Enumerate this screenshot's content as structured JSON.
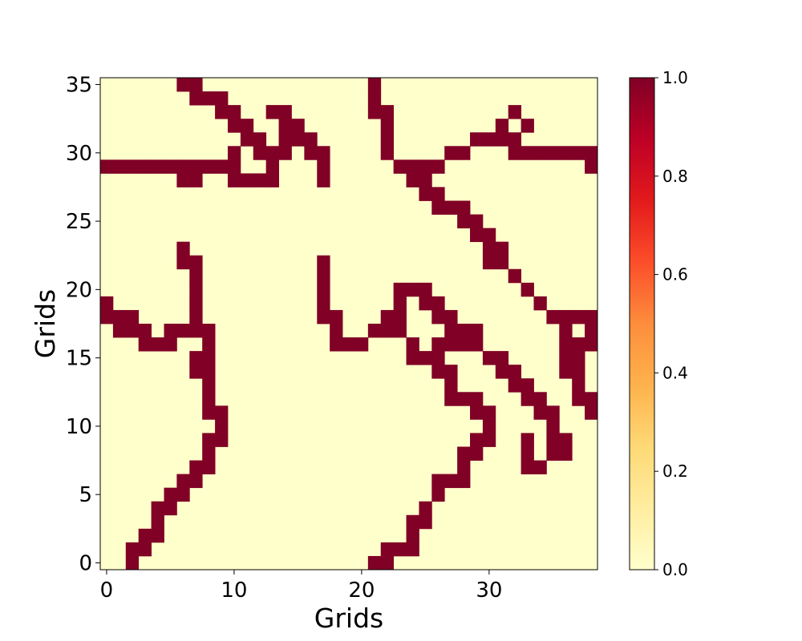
{
  "chart_data": {
    "type": "heatmap",
    "xlabel": "Grids",
    "ylabel": "Grids",
    "xlim": [
      -0.5,
      38.5
    ],
    "ylim": [
      -0.5,
      35.5
    ],
    "x_ticks": [
      0,
      10,
      20,
      30
    ],
    "y_ticks": [
      0,
      5,
      10,
      15,
      20,
      25,
      30,
      35
    ],
    "colorbar": {
      "min": 0.0,
      "max": 1.0,
      "ticks": [
        "0.0",
        "0.2",
        "0.4",
        "0.6",
        "0.8",
        "1.0"
      ],
      "colormap": "YlOrRd",
      "colors": [
        "#ffffcc",
        "#ffeda0",
        "#fed976",
        "#feb24c",
        "#fd8d3c",
        "#fc4e2a",
        "#e31a1c",
        "#bd0026",
        "#800026"
      ]
    },
    "background_value": 0,
    "cells_value_1_by_row": {
      "0": [
        2,
        21,
        22
      ],
      "1": [
        2,
        3,
        22,
        23,
        24
      ],
      "2": [
        3,
        4,
        24
      ],
      "3": [
        4,
        24,
        25
      ],
      "4": [
        4,
        5,
        25
      ],
      "5": [
        5,
        6,
        26
      ],
      "6": [
        6,
        7,
        26,
        27,
        28
      ],
      "7": [
        7,
        8,
        28,
        33,
        34
      ],
      "8": [
        8,
        28,
        29,
        33,
        35,
        36
      ],
      "9": [
        8,
        9,
        29,
        30,
        33,
        35,
        36
      ],
      "10": [
        9,
        30,
        35
      ],
      "11": [
        8,
        9,
        29,
        30,
        34,
        35,
        38
      ],
      "12": [
        8,
        27,
        28,
        29,
        33,
        34,
        37,
        38
      ],
      "13": [
        8,
        27,
        32,
        33,
        37
      ],
      "14": [
        7,
        8,
        26,
        27,
        31,
        32,
        36,
        37
      ],
      "15": [
        7,
        8,
        24,
        25,
        26,
        30,
        31,
        36,
        37
      ],
      "16": [
        3,
        4,
        5,
        8,
        18,
        19,
        20,
        24,
        26,
        27,
        28,
        29,
        36,
        37,
        38
      ],
      "17": [
        1,
        2,
        3,
        5,
        6,
        7,
        8,
        18,
        21,
        22,
        23,
        27,
        28,
        29,
        36,
        38
      ],
      "18": [
        0,
        1,
        2,
        7,
        17,
        18,
        22,
        23,
        26,
        27,
        35,
        36,
        37,
        38
      ],
      "19": [
        0,
        7,
        17,
        23,
        25,
        26,
        34
      ],
      "20": [
        7,
        17,
        23,
        24,
        25,
        33
      ],
      "21": [
        7,
        17,
        32
      ],
      "22": [
        6,
        7,
        17,
        30,
        31
      ],
      "23": [
        6,
        30,
        31
      ],
      "24": [
        29,
        30
      ],
      "25": [
        28,
        29
      ],
      "26": [
        26,
        27,
        28
      ],
      "27": [
        25,
        26
      ],
      "28": [
        6,
        7,
        10,
        11,
        12,
        13,
        17,
        24,
        25
      ],
      "29": [
        0,
        1,
        2,
        3,
        4,
        5,
        6,
        7,
        8,
        9,
        10,
        13,
        17,
        23,
        24,
        25,
        26,
        38
      ],
      "30": [
        10,
        12,
        13,
        14,
        16,
        17,
        22,
        27,
        28,
        32,
        33,
        34,
        35,
        36,
        37,
        38
      ],
      "31": [
        11,
        12,
        14,
        15,
        16,
        22,
        29,
        30,
        31,
        32
      ],
      "32": [
        10,
        11,
        14,
        15,
        22,
        31,
        33
      ],
      "33": [
        9,
        10,
        13,
        14,
        21,
        22,
        32
      ],
      "34": [
        7,
        8,
        9,
        21
      ],
      "35": [
        6,
        7,
        21
      ]
    }
  }
}
